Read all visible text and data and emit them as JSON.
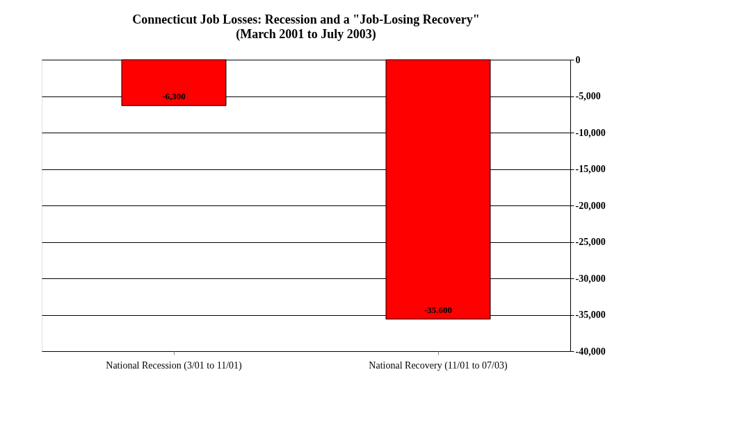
{
  "chart_data": {
    "type": "bar",
    "title": "Connecticut Job Losses: Recession and a \"Job-Losing Recovery\"",
    "subtitle": "(March 2001 to July 2003)",
    "categories": [
      "National Recession (3/01 to 11/01)",
      "National Recovery (11/01 to 07/03)"
    ],
    "values": [
      -6300,
      -35600
    ],
    "color": "#ff0000",
    "value_labels": [
      "-6,300",
      "-35,600"
    ],
    "ylim": [
      -40000,
      0
    ],
    "yticks": [
      {
        "value": 0,
        "label": "0"
      },
      {
        "value": -5000,
        "label": "-5,000"
      },
      {
        "value": -10000,
        "label": "-10,000"
      },
      {
        "value": -15000,
        "label": "-15,000"
      },
      {
        "value": -20000,
        "label": "-20,000"
      },
      {
        "value": -25000,
        "label": "-25,000"
      },
      {
        "value": -30000,
        "label": "-30,000"
      },
      {
        "value": -35000,
        "label": "-35,000"
      },
      {
        "value": -40000,
        "label": "-40,000"
      }
    ],
    "grid": "y"
  }
}
